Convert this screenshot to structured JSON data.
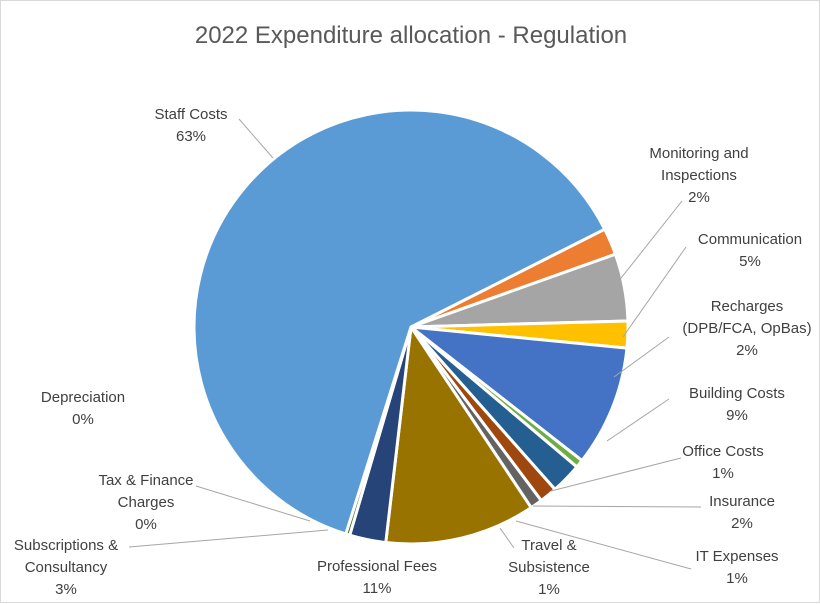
{
  "chart_data": {
    "type": "pie",
    "title": "2022 Expenditure allocation - Regulation",
    "start_angle_deg": 63.2,
    "slices": [
      {
        "label": [
          "Monitoring and",
          "Inspections"
        ],
        "percent_label": "2%",
        "value": 2.0,
        "color": "#ED7D31"
      },
      {
        "label": [
          "Communication"
        ],
        "percent_label": "5%",
        "value": 5.0,
        "color": "#A5A5A5"
      },
      {
        "label": [
          "Recharges",
          "(DPB/FCA, OpBas)"
        ],
        "percent_label": "2%",
        "value": 2.0,
        "color": "#FFC000"
      },
      {
        "label": [
          "Building Costs"
        ],
        "percent_label": "9%",
        "value": 9.0,
        "color": "#4472C4"
      },
      {
        "label": [
          "Office Costs"
        ],
        "percent_label": "1%",
        "value": 0.6,
        "color": "#70AD47"
      },
      {
        "label": [
          "Insurance"
        ],
        "percent_label": "2%",
        "value": 2.3,
        "color": "#255E91"
      },
      {
        "label": [
          "IT Expenses"
        ],
        "percent_label": "1%",
        "value": 1.3,
        "color": "#9E480E"
      },
      {
        "label": [
          "Travel &",
          "Subsistence"
        ],
        "percent_label": "1%",
        "value": 0.9,
        "color": "#636363"
      },
      {
        "label": [
          "Professional Fees"
        ],
        "percent_label": "11%",
        "value": 11.2,
        "color": "#997300"
      },
      {
        "label": [
          "Subscriptions &",
          "Consultancy"
        ],
        "percent_label": "3%",
        "value": 2.7,
        "color": "#264478"
      },
      {
        "label": [
          "Tax & Finance",
          "Charges"
        ],
        "percent_label": "0%",
        "value": 0.3,
        "color": "#43682B"
      },
      {
        "label": [
          "Depreciation"
        ],
        "percent_label": "0%",
        "value": 0.0,
        "color": "#698ED0"
      },
      {
        "label": [
          "Staff Costs"
        ],
        "percent_label": "63%",
        "value": 62.7,
        "color": "#5B9BD5"
      }
    ],
    "label_color": "#404040",
    "leader_line_color": "#A6A6A6"
  }
}
